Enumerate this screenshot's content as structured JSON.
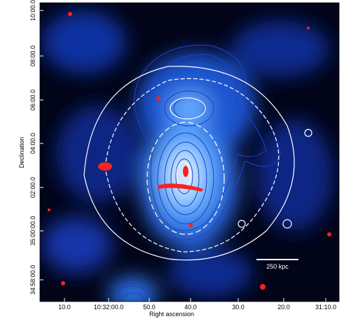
{
  "axes": {
    "x_label": "Right ascension",
    "x_ticks": [
      "10.0",
      "10:32:00.0",
      "50.0",
      "40.0",
      "30.0",
      "20.0",
      "31:10.0"
    ],
    "y_label": "Declination",
    "y_ticks": [
      "10:00.0",
      "08:00.0",
      "06:00.0",
      "04:00.0",
      "02:00.0",
      "35:00:00.0",
      "34:58:00.0"
    ]
  },
  "scale_bar": "250 kpc"
}
